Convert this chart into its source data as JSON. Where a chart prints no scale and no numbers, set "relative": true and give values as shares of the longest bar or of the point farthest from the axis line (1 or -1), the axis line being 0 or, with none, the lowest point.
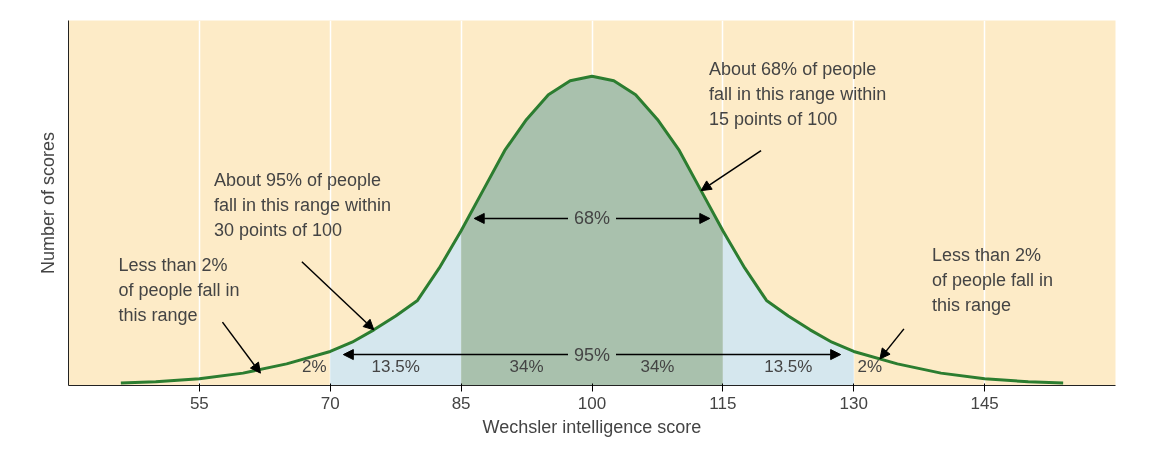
{
  "chart_data": {
    "type": "line",
    "relative": true,
    "xlabel": "Wechsler intelligence score",
    "ylabel": "Number of scores",
    "xlim": [
      40,
      160
    ],
    "xticks": [
      55,
      70,
      85,
      100,
      115,
      130,
      145
    ],
    "grid": "x",
    "series": [
      {
        "type": "area",
        "color": "#d5e7ee",
        "x": [
          70,
          72.5,
          75,
          77.5,
          80,
          82.5,
          85
        ],
        "values": [
          0.11,
          0.14,
          0.18,
          0.225,
          0.275,
          0.38,
          0.5
        ]
      },
      {
        "type": "area",
        "color": "#a9c1ad",
        "x": [
          85,
          87.5,
          90,
          92.5,
          95,
          97.5,
          100,
          102.5,
          105,
          107.5,
          110,
          112.5,
          115
        ],
        "values": [
          0.5,
          0.63,
          0.76,
          0.86,
          0.94,
          0.985,
          1,
          0.985,
          0.94,
          0.86,
          0.76,
          0.63,
          0.5
        ]
      },
      {
        "type": "area",
        "color": "#d5e7ee",
        "x": [
          115,
          117.5,
          120,
          122.5,
          125,
          127.5,
          130
        ],
        "values": [
          0.5,
          0.38,
          0.275,
          0.225,
          0.18,
          0.14,
          0.11
        ]
      },
      {
        "color": "#2c7d30",
        "x": [
          46,
          50,
          55,
          60,
          65,
          70,
          72.5,
          75,
          77.5,
          80,
          82.5,
          85,
          87.5,
          90,
          92.5,
          95,
          97.5,
          100,
          102.5,
          105,
          107.5,
          110,
          112.5,
          115,
          117.5,
          120,
          122.5,
          125,
          127.5,
          130,
          135,
          140,
          145,
          150,
          154
        ],
        "values": [
          0.008,
          0.012,
          0.022,
          0.04,
          0.07,
          0.11,
          0.14,
          0.18,
          0.225,
          0.275,
          0.38,
          0.5,
          0.63,
          0.76,
          0.86,
          0.94,
          0.985,
          1,
          0.985,
          0.94,
          0.86,
          0.76,
          0.63,
          0.5,
          0.38,
          0.275,
          0.225,
          0.18,
          0.14,
          0.11,
          0.07,
          0.04,
          0.022,
          0.012,
          0.008
        ]
      }
    ],
    "annotations": [
      {
        "text": "Less than 2%\nof people fall in\nthis range",
        "x": 62,
        "y": 0.04
      },
      {
        "text": "About 95% of people\nfall in this range within\n30 points of 100",
        "x": 75,
        "y": 0.18
      },
      {
        "text": "About 68% of people\nfall in this range within\n15 points of 100",
        "x": 112.5,
        "y": 0.63
      },
      "Less than 2%\nof people fall in\nthis range",
      "68%",
      "95%",
      "2%",
      "13.5%",
      "34%",
      "34%",
      "13.5%",
      "2%"
    ]
  }
}
